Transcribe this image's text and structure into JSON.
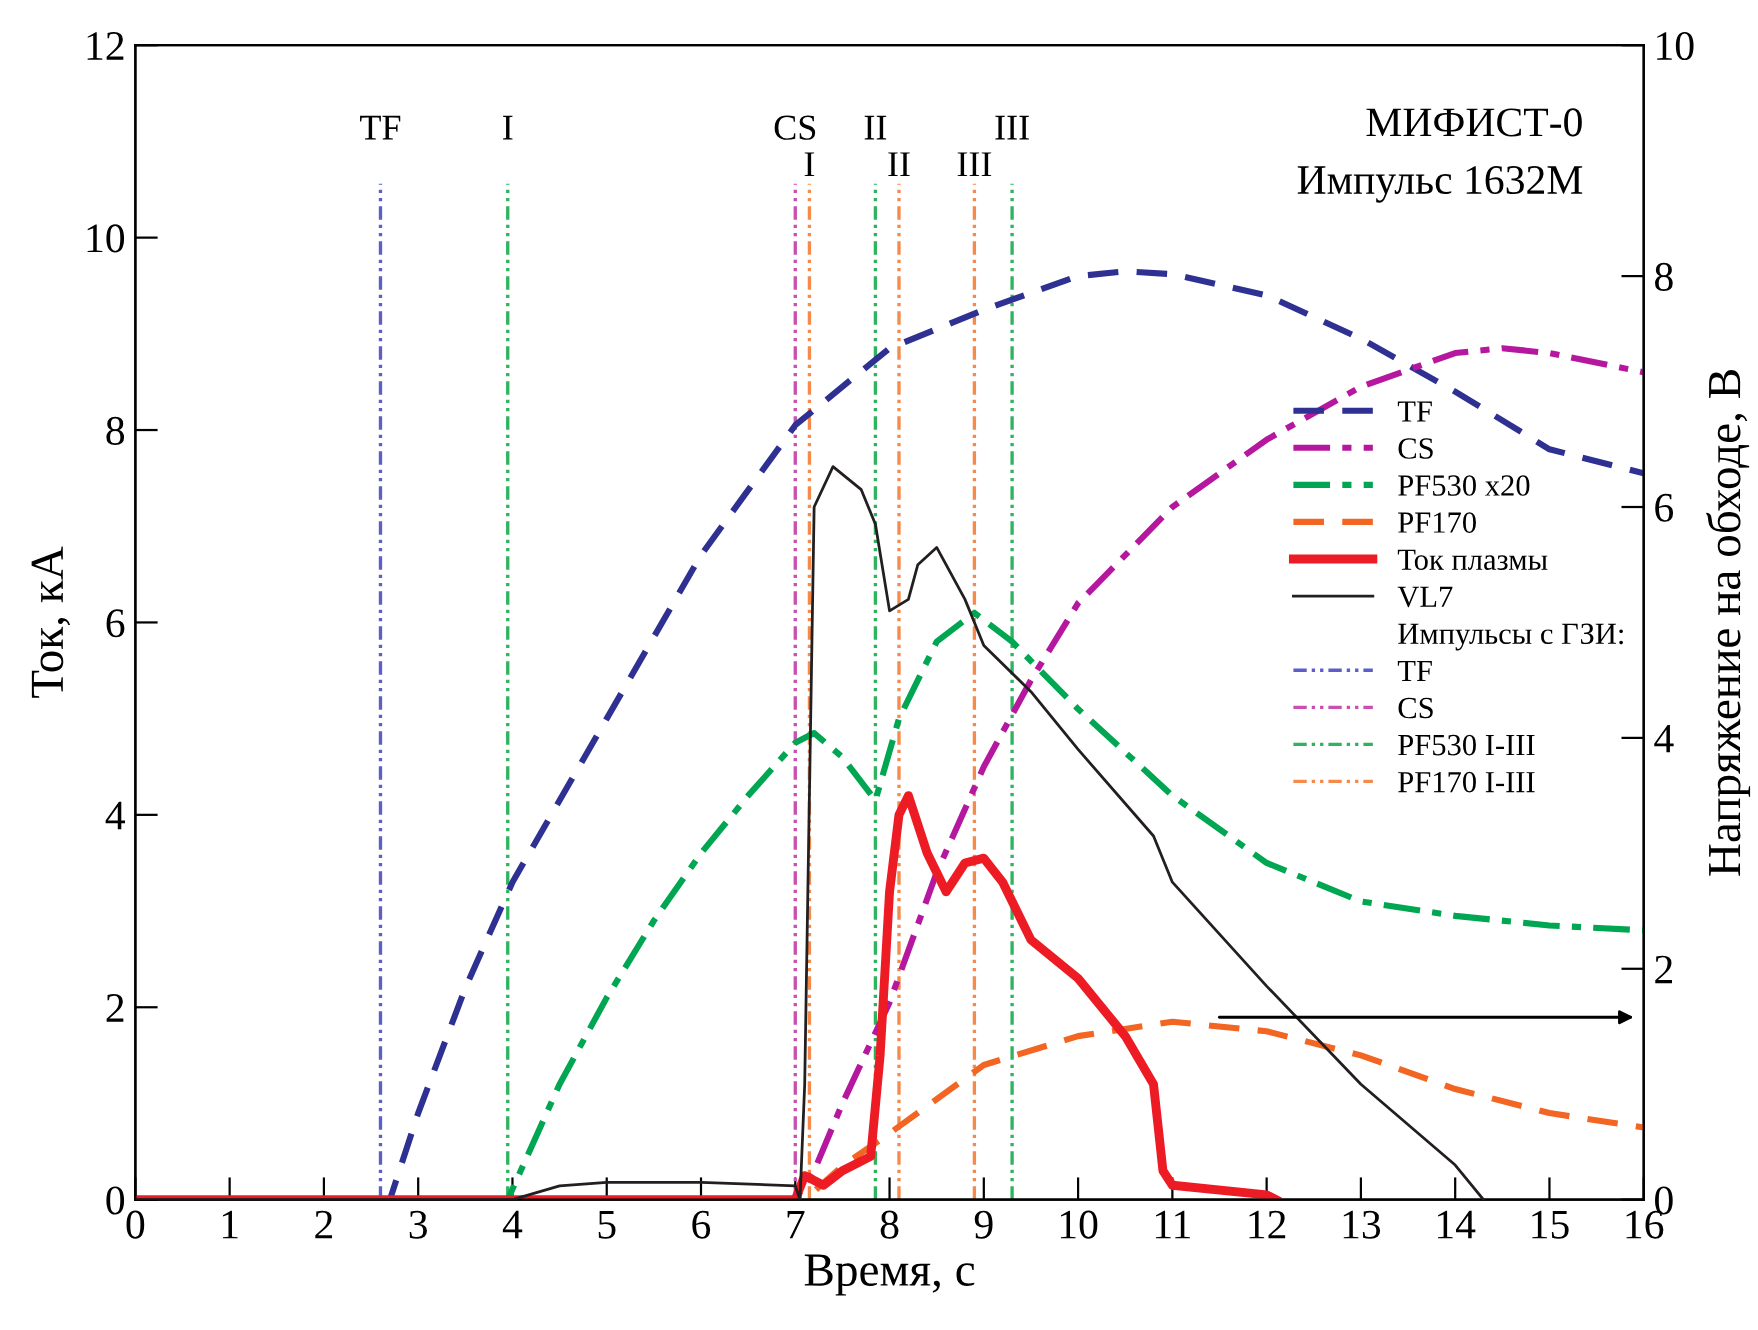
{
  "chart_data": {
    "type": "line",
    "xlabel": "Время, с",
    "ylabel": "Ток, кА",
    "y2label": "Напряжение на обходе, В",
    "xlim": [
      0,
      16
    ],
    "xticks": [
      0,
      1,
      2,
      3,
      4,
      5,
      6,
      7,
      8,
      9,
      10,
      11,
      12,
      13,
      14,
      15,
      16
    ],
    "ylim": [
      0,
      12
    ],
    "yticks": [
      0,
      2,
      4,
      6,
      8,
      10,
      12
    ],
    "y2lim": [
      0,
      10
    ],
    "y2ticks": [
      0,
      2,
      4,
      6,
      8,
      10
    ],
    "grid": false,
    "legend": "right",
    "series": [
      {
        "name": "TF",
        "color": "#2e3192",
        "line_style": "dashed",
        "x": [
          0,
          2.7,
          2.8,
          3,
          3.5,
          4,
          5,
          6,
          7,
          8,
          9,
          10,
          10.5,
          11,
          12,
          13,
          14,
          15,
          16
        ],
        "values": [
          0,
          0,
          0.3,
          0.9,
          2.2,
          3.3,
          5.0,
          6.7,
          8.05,
          8.85,
          9.25,
          9.6,
          9.65,
          9.62,
          9.4,
          8.95,
          8.4,
          7.8,
          7.55
        ]
      },
      {
        "name": "CS",
        "color": "#b5179e",
        "line_style": "dashdot",
        "x": [
          0,
          7.0,
          7.2,
          7.5,
          8,
          8.5,
          9,
          9.5,
          10,
          11,
          12,
          13,
          14,
          14.5,
          15,
          16
        ],
        "values": [
          0,
          0,
          0.3,
          1.0,
          2.05,
          3.4,
          4.5,
          5.4,
          6.2,
          7.2,
          7.9,
          8.45,
          8.8,
          8.85,
          8.8,
          8.6
        ]
      },
      {
        "name": "PF530 x20",
        "color": "#00a651",
        "line_style": "dashdot",
        "x": [
          0,
          3.95,
          4.5,
          5,
          5.5,
          6,
          6.5,
          7,
          7.2,
          7.5,
          7.85,
          8.1,
          8.5,
          8.9,
          9.3,
          10,
          11,
          12,
          13,
          14,
          15,
          16
        ],
        "values": [
          0,
          0,
          1.2,
          2.1,
          2.9,
          3.6,
          4.2,
          4.75,
          4.85,
          4.6,
          4.15,
          5.0,
          5.8,
          6.1,
          5.8,
          5.1,
          4.2,
          3.5,
          3.1,
          2.95,
          2.85,
          2.8
        ]
      },
      {
        "name": "PF170",
        "color": "#f26522",
        "line_style": "dashed",
        "x": [
          0,
          7.1,
          7.5,
          8,
          9,
          10,
          11,
          12,
          13,
          14,
          15,
          16
        ],
        "values": [
          0,
          0,
          0.35,
          0.69,
          1.4,
          1.7,
          1.85,
          1.75,
          1.5,
          1.15,
          0.9,
          0.75
        ]
      },
      {
        "name": "Ток плазмы",
        "color": "#ed1c24",
        "line_style": "solid",
        "x": [
          0,
          7.0,
          7.1,
          7.3,
          7.5,
          7.8,
          7.9,
          8.0,
          8.1,
          8.2,
          8.4,
          8.6,
          8.8,
          9.0,
          9.2,
          9.5,
          10,
          10.5,
          10.8,
          10.9,
          11,
          12,
          12.1
        ],
        "values": [
          0,
          0,
          0.25,
          0.15,
          0.3,
          0.45,
          1.5,
          3.2,
          4.0,
          4.2,
          3.6,
          3.2,
          3.5,
          3.55,
          3.3,
          2.7,
          2.3,
          1.7,
          1.2,
          0.3,
          0.15,
          0.05,
          0
        ]
      },
      {
        "name": "VL7",
        "color": "#231f20",
        "line_style": "solid",
        "axis": "y2",
        "x": [
          0,
          4,
          4.5,
          5,
          6,
          7,
          7.05,
          7.1,
          7.2,
          7.4,
          7.7,
          7.85,
          8.0,
          8.2,
          8.3,
          8.5,
          8.8,
          9.0,
          9.5,
          10,
          10.8,
          11,
          12,
          13,
          14,
          14.3
        ],
        "values": [
          0,
          0,
          0.12,
          0.15,
          0.15,
          0.12,
          0,
          1.0,
          6.0,
          6.35,
          6.15,
          5.85,
          5.1,
          5.2,
          5.5,
          5.65,
          5.2,
          4.8,
          4.4,
          3.9,
          3.15,
          2.75,
          1.85,
          1.0,
          0.3,
          0
        ]
      }
    ],
    "ref_lines": [
      {
        "axis": "x",
        "value": 2.6,
        "label": "TF",
        "color": "#5b5fc7"
      },
      {
        "axis": "x",
        "value": 7.0,
        "label": "CS",
        "color": "#c94fb0"
      },
      {
        "axis": "x",
        "value": 3.95,
        "label": "I",
        "color": "#2fb35f"
      },
      {
        "axis": "x",
        "value": 7.85,
        "label": "II",
        "color": "#2fb35f"
      },
      {
        "axis": "x",
        "value": 9.3,
        "label": "III",
        "color": "#2fb35f"
      },
      {
        "axis": "x",
        "value": 7.15,
        "label": "I",
        "color": "#f58a4b"
      },
      {
        "axis": "x",
        "value": 8.1,
        "label": "II",
        "color": "#f58a4b"
      },
      {
        "axis": "x",
        "value": 8.9,
        "label": "III",
        "color": "#f58a4b"
      }
    ],
    "annotations": [
      "МИФИСТ-0",
      "Импульс 1632М",
      "Импульсы с ГЗИ:",
      "TF",
      "CS",
      "PF530 I-III",
      "PF170 I-III"
    ]
  }
}
